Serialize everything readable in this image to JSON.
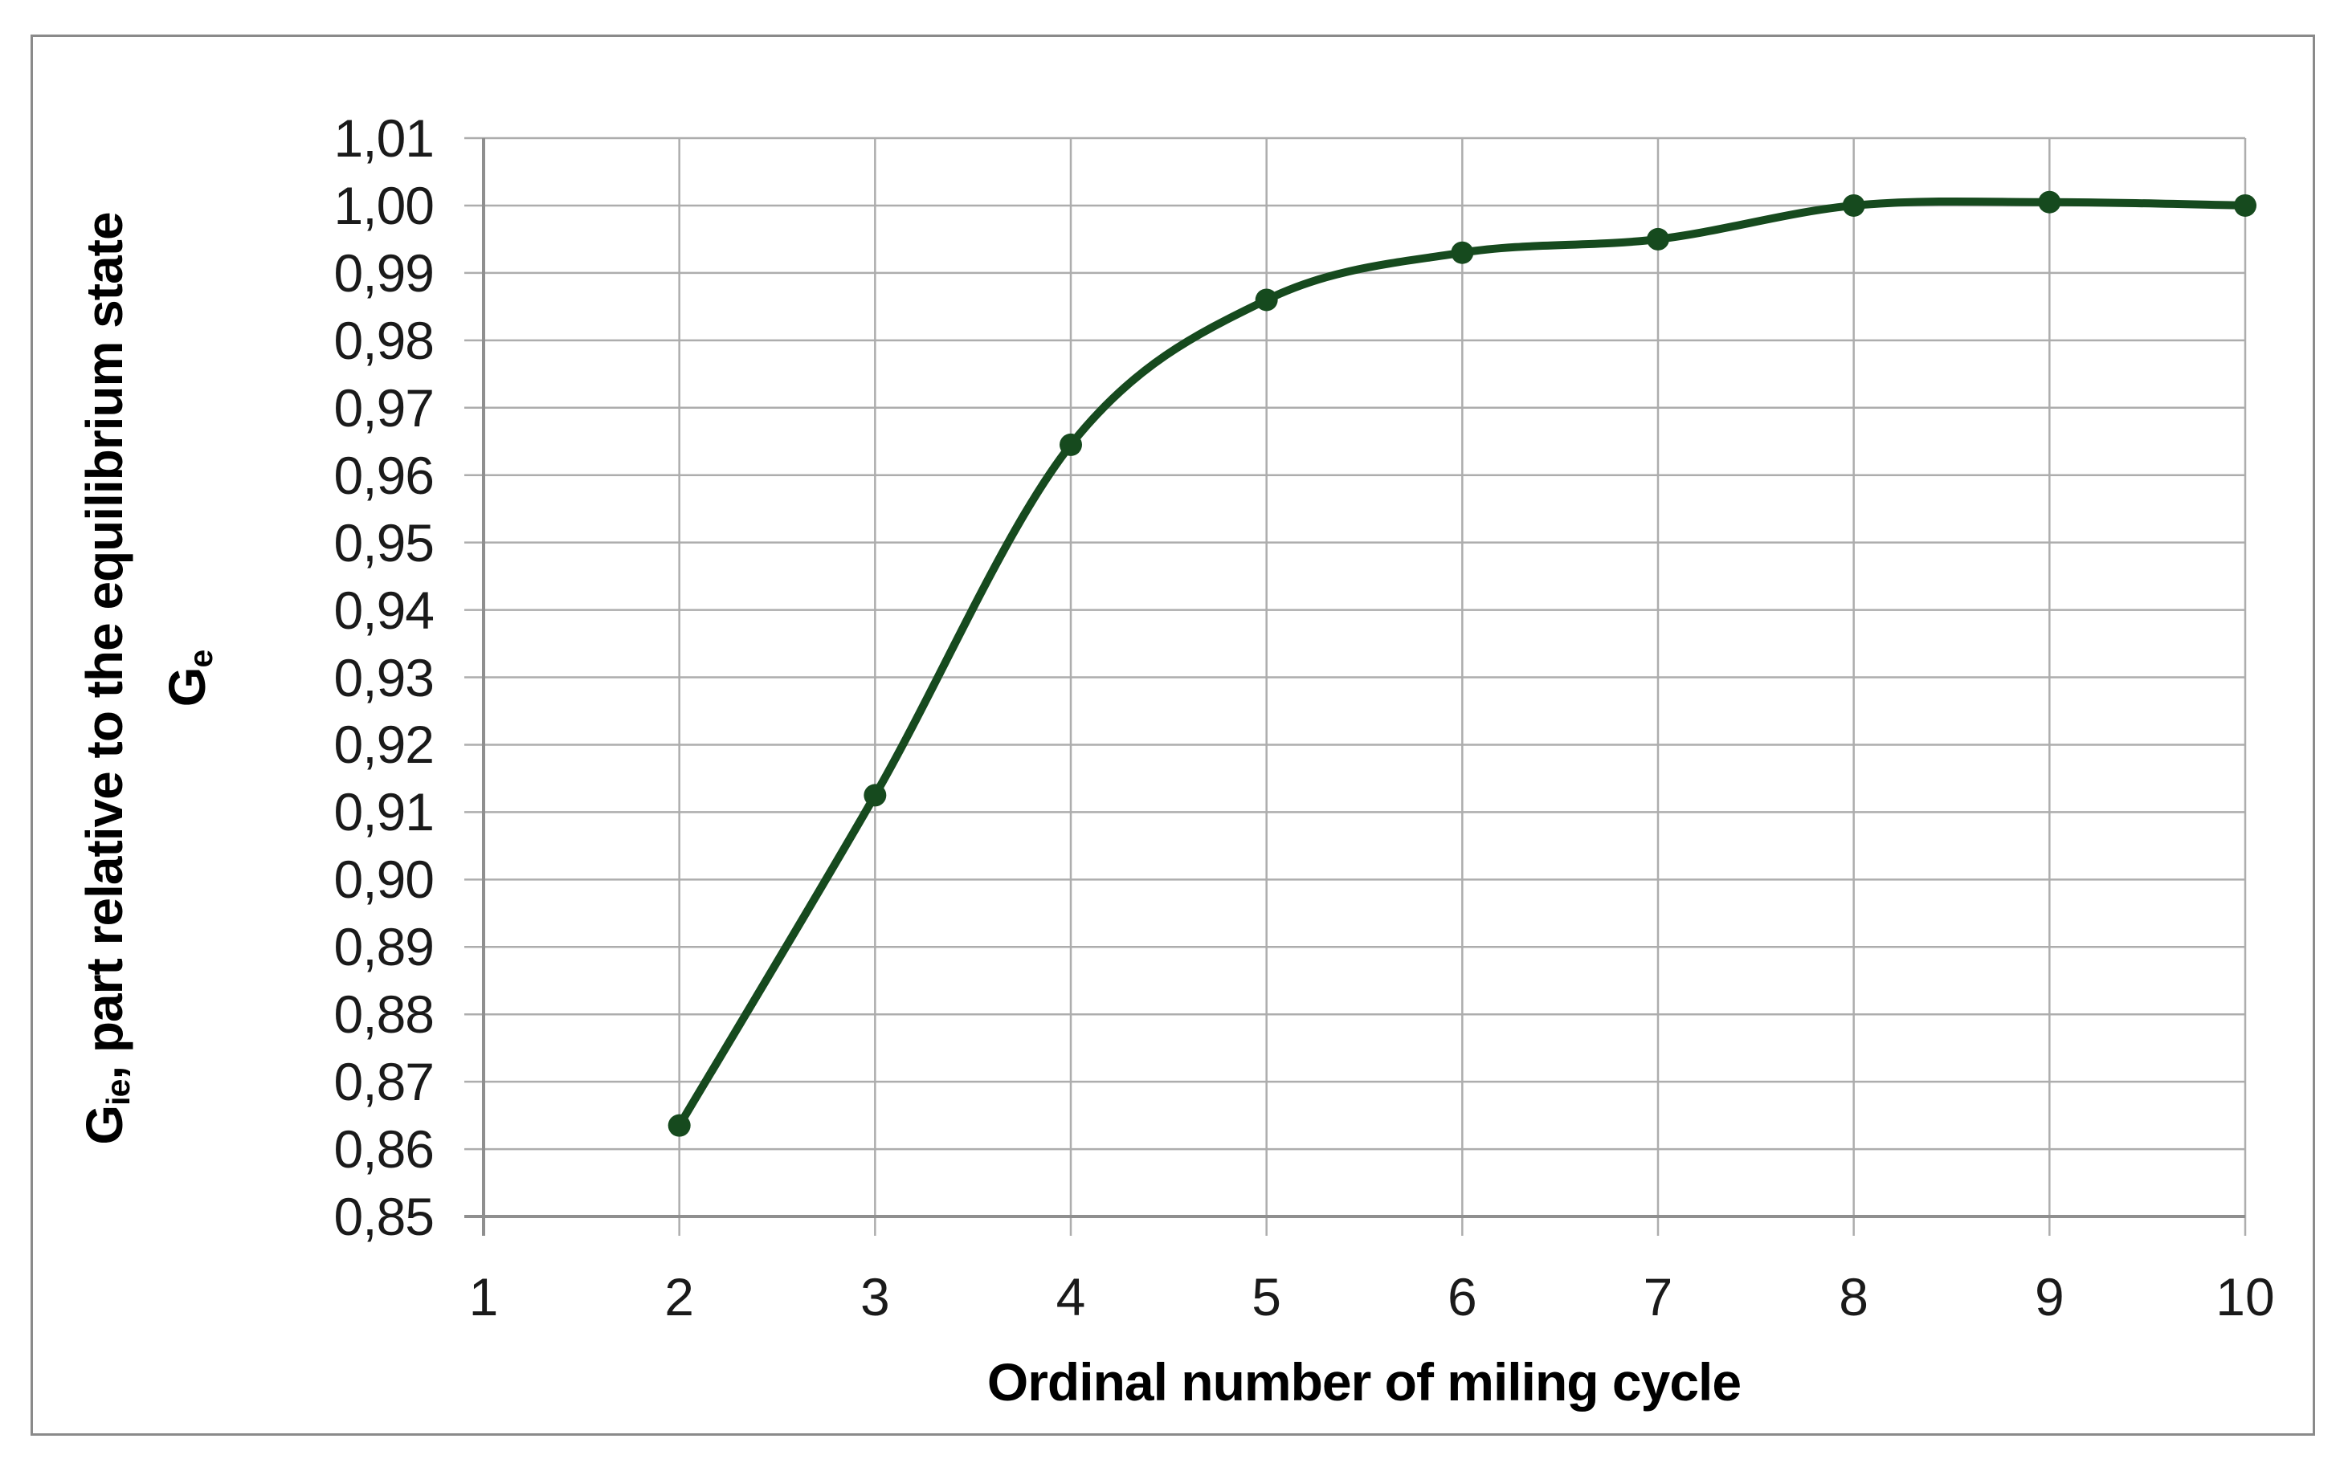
{
  "figure": {
    "background": "#ffffff",
    "border_color": "#8a8a8a"
  },
  "chart_data": {
    "type": "line",
    "title": "",
    "xlabel": "Ordinal number of miling cycle",
    "ylabel": {
      "line1_prefix": "G",
      "line1_sub": "ie",
      "line1_rest": ", part relative to the equilibrium state",
      "line2_prefix": "G",
      "line2_sub": "e"
    },
    "x": [
      2,
      3,
      4,
      5,
      6,
      7,
      8,
      9,
      10
    ],
    "values": [
      0.8635,
      0.9125,
      0.9645,
      0.986,
      0.993,
      0.995,
      1.0,
      1.0005,
      1.0
    ],
    "x_ticks": [
      {
        "v": 1,
        "label": "1"
      },
      {
        "v": 2,
        "label": "2"
      },
      {
        "v": 3,
        "label": "3"
      },
      {
        "v": 4,
        "label": "4"
      },
      {
        "v": 5,
        "label": "5"
      },
      {
        "v": 6,
        "label": "6"
      },
      {
        "v": 7,
        "label": "7"
      },
      {
        "v": 8,
        "label": "8"
      },
      {
        "v": 9,
        "label": "9"
      },
      {
        "v": 10,
        "label": "10"
      }
    ],
    "y_ticks": [
      {
        "v": 0.85,
        "label": "0,85"
      },
      {
        "v": 0.86,
        "label": "0,86"
      },
      {
        "v": 0.87,
        "label": "0,87"
      },
      {
        "v": 0.88,
        "label": "0,88"
      },
      {
        "v": 0.89,
        "label": "0,89"
      },
      {
        "v": 0.9,
        "label": "0,90"
      },
      {
        "v": 0.91,
        "label": "0,91"
      },
      {
        "v": 0.92,
        "label": "0,92"
      },
      {
        "v": 0.93,
        "label": "0,93"
      },
      {
        "v": 0.94,
        "label": "0,94"
      },
      {
        "v": 0.95,
        "label": "0,95"
      },
      {
        "v": 0.96,
        "label": "0,96"
      },
      {
        "v": 0.97,
        "label": "0,97"
      },
      {
        "v": 0.98,
        "label": "0,98"
      },
      {
        "v": 0.99,
        "label": "0,99"
      },
      {
        "v": 1.0,
        "label": "1,00"
      },
      {
        "v": 1.01,
        "label": "1,01"
      }
    ],
    "xlim": [
      1,
      10
    ],
    "ylim": [
      0.85,
      1.01
    ],
    "grid": true,
    "legend": "none",
    "smoothed": true,
    "line_color": "#164a1e",
    "marker_color": "#164a1e",
    "gridline_color": "#adadad",
    "axis_color": "#8f8f8f"
  }
}
